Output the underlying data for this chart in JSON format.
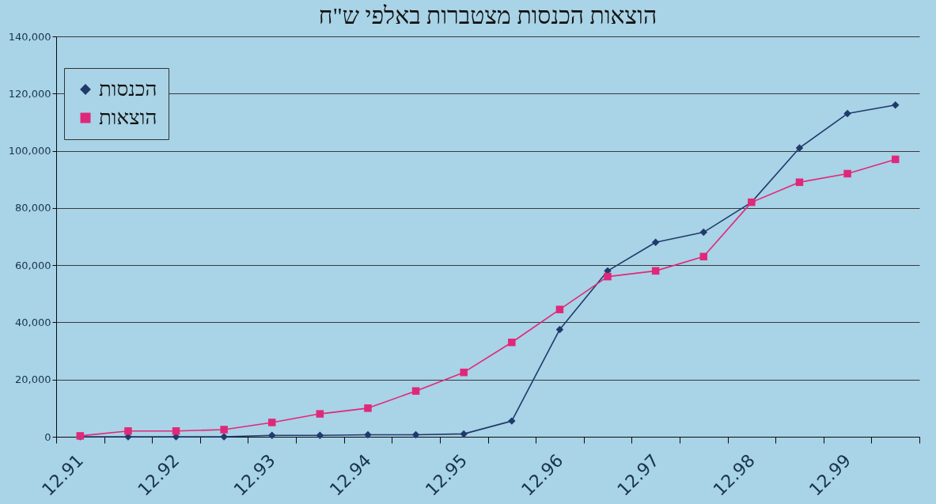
{
  "chart_data": {
    "type": "line",
    "title": "הוצאות הכנסות מצטברות באלפי ש\"ח",
    "categories": [
      "12.91",
      null,
      "12.92",
      null,
      "12.93",
      null,
      "12.94",
      null,
      "12.95",
      null,
      "12.96",
      null,
      "12.97",
      null,
      "12.98",
      null,
      "12.99",
      null
    ],
    "series": [
      {
        "name": "הכנסות",
        "color": "#1f3a6b",
        "marker": "diamond",
        "values": [
          0,
          0,
          0,
          0,
          500,
          500,
          700,
          700,
          1000,
          5500,
          37500,
          58000,
          68000,
          71500,
          82000,
          101000,
          113000,
          116000
        ]
      },
      {
        "name": "הוצאות",
        "color": "#e0287a",
        "marker": "square",
        "values": [
          300,
          2000,
          2000,
          2500,
          5000,
          8000,
          10000,
          16000,
          22500,
          33000,
          44500,
          56000,
          58000,
          63000,
          82000,
          89000,
          92000,
          97000
        ]
      }
    ],
    "ylim": [
      0,
      140000
    ],
    "yticks": [
      {
        "value": 0,
        "label": "0"
      },
      {
        "value": 20000,
        "label": "20,000"
      },
      {
        "value": 40000,
        "label": "40,000"
      },
      {
        "value": 60000,
        "label": "60,000"
      },
      {
        "value": 80000,
        "label": "80,000"
      },
      {
        "value": 100000,
        "label": "100,000"
      },
      {
        "value": 120000,
        "label": "120,000"
      },
      {
        "value": 140000,
        "label": "140,000"
      }
    ],
    "grid": "y",
    "legend": "top left",
    "line_style": "solid"
  }
}
